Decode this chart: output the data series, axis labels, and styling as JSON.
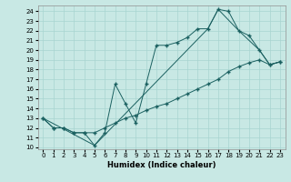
{
  "xlabel": "Humidex (Indice chaleur)",
  "bg_color": "#c8e8e4",
  "grid_color": "#a8d4d0",
  "line_color": "#1a6060",
  "xlim": [
    -0.5,
    23.5
  ],
  "ylim": [
    9.8,
    24.6
  ],
  "yticks": [
    10,
    11,
    12,
    13,
    14,
    15,
    16,
    17,
    18,
    19,
    20,
    21,
    22,
    23,
    24
  ],
  "xticks": [
    0,
    1,
    2,
    3,
    4,
    5,
    6,
    7,
    8,
    9,
    10,
    11,
    12,
    13,
    14,
    15,
    16,
    17,
    18,
    19,
    20,
    21,
    22,
    23
  ],
  "line1_x": [
    0,
    1,
    2,
    3,
    4,
    5,
    6,
    7,
    8,
    9,
    10,
    11,
    12,
    13,
    14,
    15,
    16,
    17,
    18,
    19,
    20,
    21,
    22,
    23
  ],
  "line1_y": [
    13,
    12,
    12,
    11.5,
    11.5,
    10.2,
    11.5,
    16.5,
    14.5,
    12.5,
    16.5,
    20.5,
    20.5,
    20.8,
    21.3,
    22.2,
    22.2,
    24.2,
    24.0,
    22.0,
    21.5,
    20.0,
    18.5,
    18.8
  ],
  "line2_x": [
    0,
    1,
    2,
    3,
    4,
    5,
    6,
    7,
    8,
    9,
    10,
    11,
    12,
    13,
    14,
    15,
    16,
    17,
    18,
    19,
    20,
    21,
    22,
    23
  ],
  "line2_y": [
    13,
    12,
    12,
    11.5,
    11.5,
    11.5,
    12.0,
    12.5,
    13.0,
    13.3,
    13.8,
    14.2,
    14.5,
    15.0,
    15.5,
    16.0,
    16.5,
    17.0,
    17.8,
    18.3,
    18.7,
    19.0,
    18.5,
    18.8
  ],
  "line3_x": [
    0,
    5,
    16,
    17,
    19,
    21,
    22,
    23
  ],
  "line3_y": [
    13,
    10.2,
    22.2,
    24.2,
    22.0,
    20.0,
    18.5,
    18.8
  ],
  "marker_size": 2.5,
  "lw": 0.7,
  "tick_fontsize": 5
}
